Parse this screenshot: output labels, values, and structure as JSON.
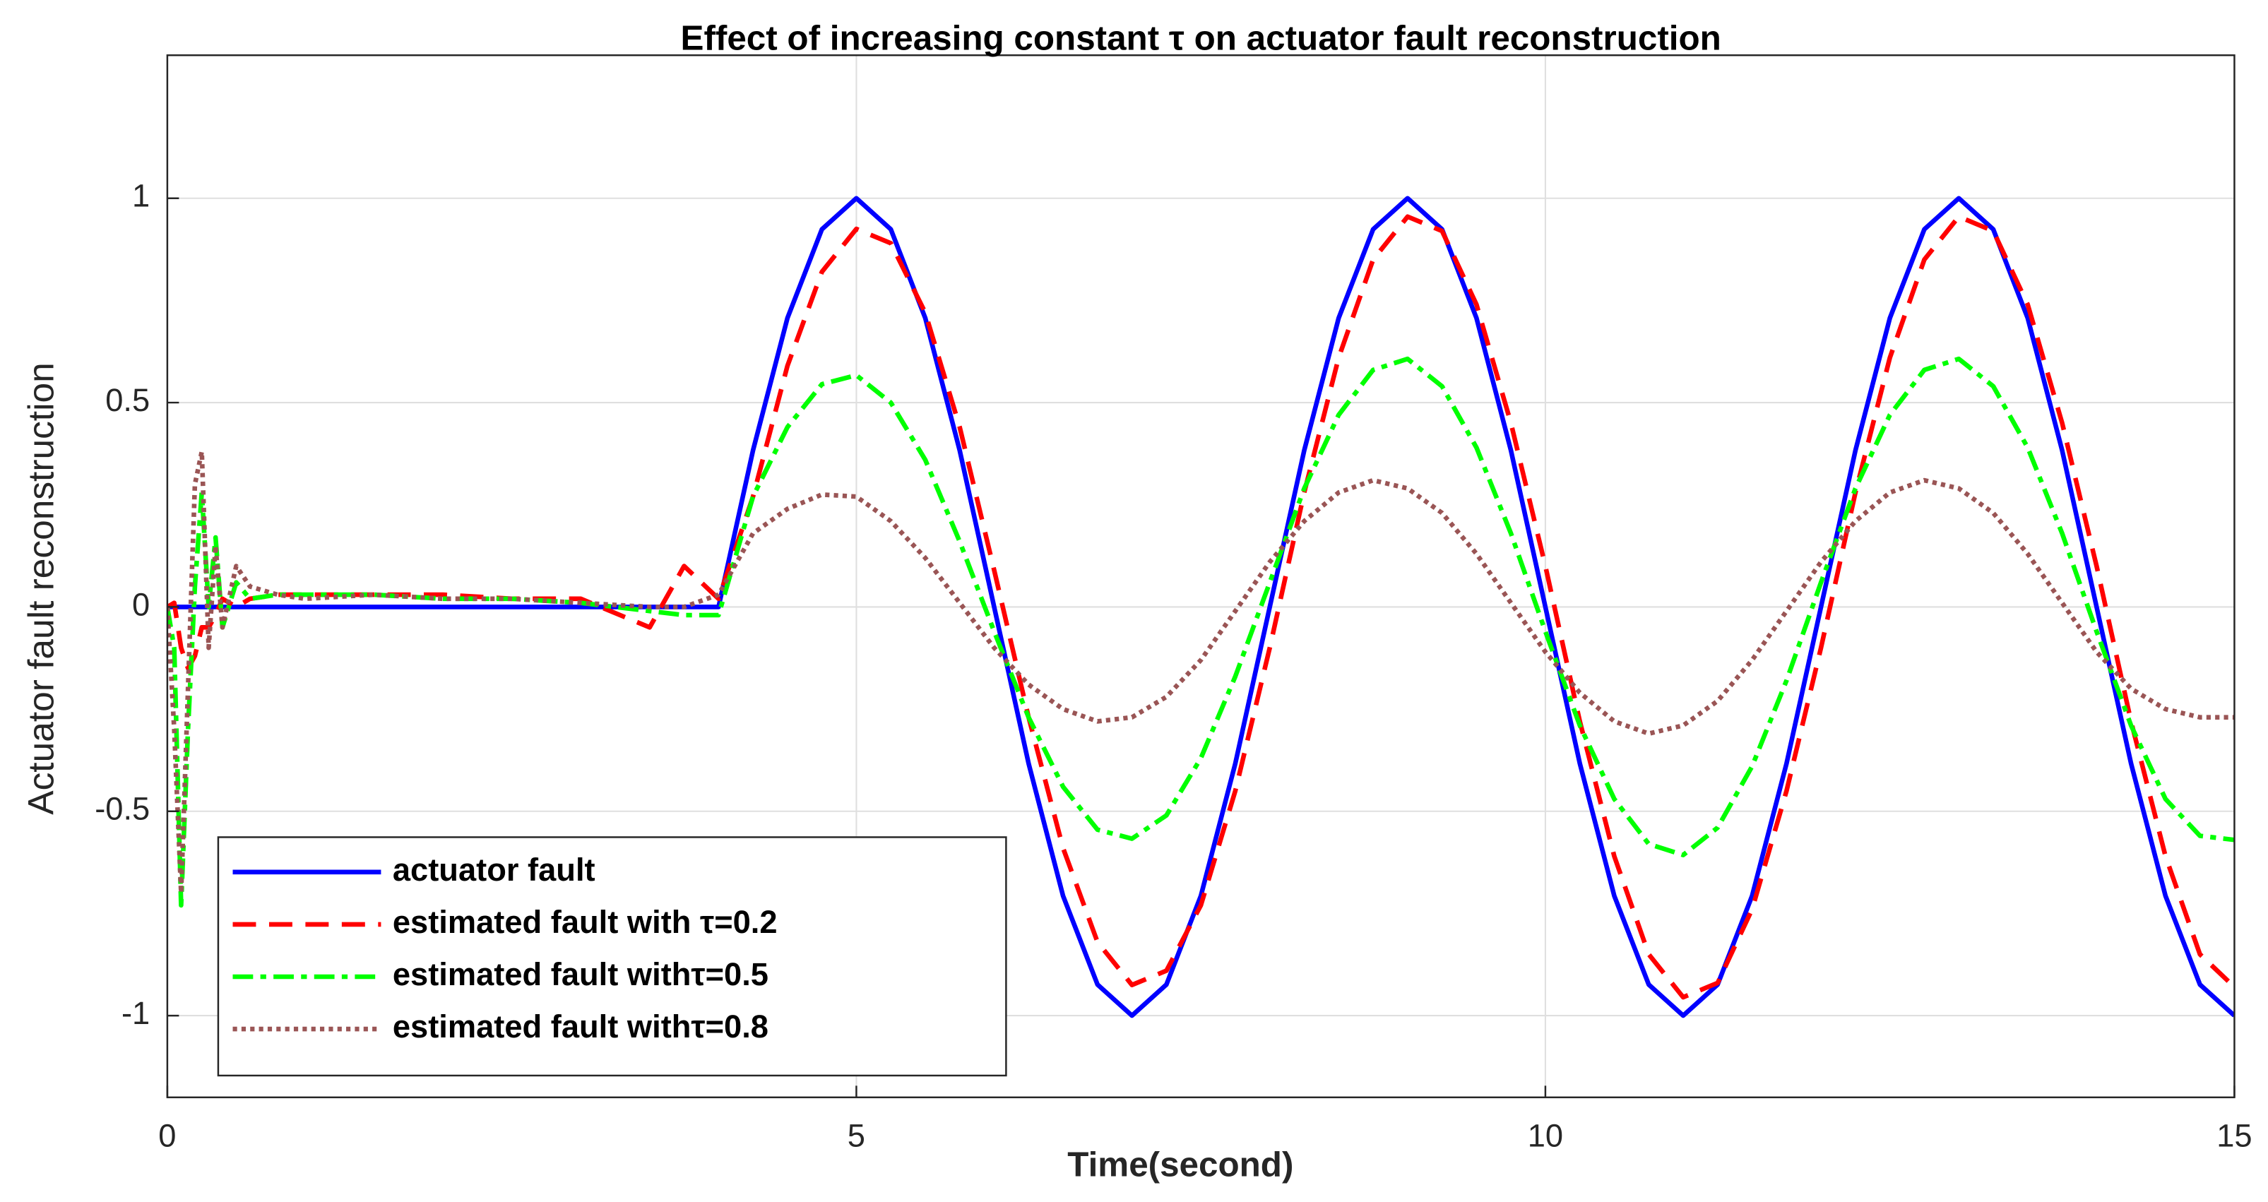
{
  "chart_data": {
    "type": "line",
    "title": "Effect of increasing constant  τ on actuator fault reconstruction",
    "xlabel": "Time(second)",
    "ylabel": "Actuator fault reconstruction",
    "x": [
      0,
      0.05,
      0.1,
      0.15,
      0.2,
      0.25,
      0.3,
      0.35,
      0.4,
      0.5,
      0.6,
      0.8,
      1,
      1.5,
      2,
      2.5,
      3,
      3.5,
      3.75,
      4,
      4.25,
      4.5,
      4.75,
      5,
      5.25,
      5.5,
      5.75,
      6,
      6.25,
      6.5,
      6.75,
      7,
      7.25,
      7.5,
      7.75,
      8,
      8.25,
      8.5,
      8.75,
      9,
      9.25,
      9.5,
      9.75,
      10,
      10.25,
      10.5,
      10.75,
      11,
      11.25,
      11.5,
      11.75,
      12,
      12.25,
      12.5,
      12.75,
      13,
      13.25,
      13.5,
      13.75,
      14,
      14.25,
      14.5,
      14.75,
      15
    ],
    "series": [
      {
        "name": "actuator fault",
        "color": "#0000ff",
        "style": "solid",
        "values": [
          0,
          0,
          0,
          0,
          0,
          0,
          0,
          0,
          0,
          0,
          0,
          0,
          0,
          0,
          0,
          0,
          0,
          0,
          0,
          0,
          0.383,
          0.707,
          0.924,
          1,
          0.924,
          0.707,
          0.383,
          0,
          -0.383,
          -0.707,
          -0.924,
          -1,
          -0.924,
          -0.707,
          -0.383,
          0,
          0.383,
          0.707,
          0.924,
          1,
          0.924,
          0.707,
          0.383,
          0,
          -0.383,
          -0.707,
          -0.924,
          -1,
          -0.924,
          -0.707,
          -0.383,
          0,
          0.383,
          0.707,
          0.924,
          1,
          0.924,
          0.707,
          0.383,
          0,
          -0.383,
          -0.707,
          -0.924,
          -1
        ]
      },
      {
        "name": "estimated fault with τ=0.2",
        "color": "#ff0000",
        "style": "dashed",
        "values": [
          0,
          0.01,
          -0.1,
          -0.15,
          -0.12,
          -0.05,
          -0.05,
          -0.02,
          0.02,
          0,
          0.02,
          0.03,
          0.03,
          0.03,
          0.03,
          0.02,
          0.02,
          -0.05,
          0.1,
          0.02,
          0.27,
          0.59,
          0.82,
          0.925,
          0.89,
          0.72,
          0.44,
          0.09,
          -0.27,
          -0.59,
          -0.82,
          -0.925,
          -0.89,
          -0.73,
          -0.45,
          -0.1,
          0.28,
          0.61,
          0.85,
          0.955,
          0.92,
          0.74,
          0.45,
          0.1,
          -0.28,
          -0.61,
          -0.85,
          -0.955,
          -0.92,
          -0.74,
          -0.45,
          -0.1,
          0.28,
          0.61,
          0.85,
          0.955,
          0.92,
          0.74,
          0.45,
          0.1,
          -0.28,
          -0.61,
          -0.85,
          -0.93
        ]
      },
      {
        "name": "estimated fault withτ=0.5",
        "color": "#00ff00",
        "style": "dashdot",
        "values": [
          0,
          -0.1,
          -0.73,
          -0.3,
          0.05,
          0.28,
          0,
          0.17,
          -0.05,
          0.06,
          0.02,
          0.03,
          0.03,
          0.03,
          0.02,
          0.02,
          0.01,
          -0.01,
          -0.02,
          -0.02,
          0.27,
          0.44,
          0.545,
          0.567,
          0.5,
          0.36,
          0.16,
          -0.06,
          -0.27,
          -0.44,
          -0.545,
          -0.567,
          -0.51,
          -0.37,
          -0.17,
          0.06,
          0.29,
          0.47,
          0.58,
          0.607,
          0.54,
          0.39,
          0.18,
          -0.06,
          -0.29,
          -0.47,
          -0.58,
          -0.607,
          -0.54,
          -0.39,
          -0.18,
          0.06,
          0.29,
          0.47,
          0.58,
          0.607,
          0.54,
          0.39,
          0.18,
          -0.06,
          -0.29,
          -0.47,
          -0.56,
          -0.57
        ]
      },
      {
        "name": "estimated fault withτ=0.8",
        "color": "#9a5555",
        "style": "dotted",
        "values": [
          0,
          -0.3,
          -0.7,
          -0.2,
          0.3,
          0.38,
          -0.1,
          0.15,
          -0.05,
          0.1,
          0.05,
          0.03,
          0.02,
          0.03,
          0.02,
          0.02,
          0.01,
          0,
          0,
          0.03,
          0.18,
          0.24,
          0.275,
          0.27,
          0.21,
          0.12,
          0.01,
          -0.1,
          -0.19,
          -0.25,
          -0.28,
          -0.27,
          -0.22,
          -0.13,
          -0.01,
          0.11,
          0.21,
          0.28,
          0.31,
          0.29,
          0.23,
          0.13,
          0.01,
          -0.11,
          -0.21,
          -0.28,
          -0.31,
          -0.29,
          -0.23,
          -0.13,
          -0.01,
          0.11,
          0.21,
          0.28,
          0.31,
          0.29,
          0.23,
          0.13,
          0.01,
          -0.11,
          -0.2,
          -0.25,
          -0.27,
          -0.27
        ]
      }
    ],
    "xlim": [
      0,
      15
    ],
    "ylim": [
      -1.2,
      1.35
    ],
    "xticks": [
      0,
      5,
      10,
      15
    ],
    "yticks": [
      -1,
      -0.5,
      0,
      0.5,
      1
    ],
    "grid": true,
    "legend": "lower left"
  }
}
